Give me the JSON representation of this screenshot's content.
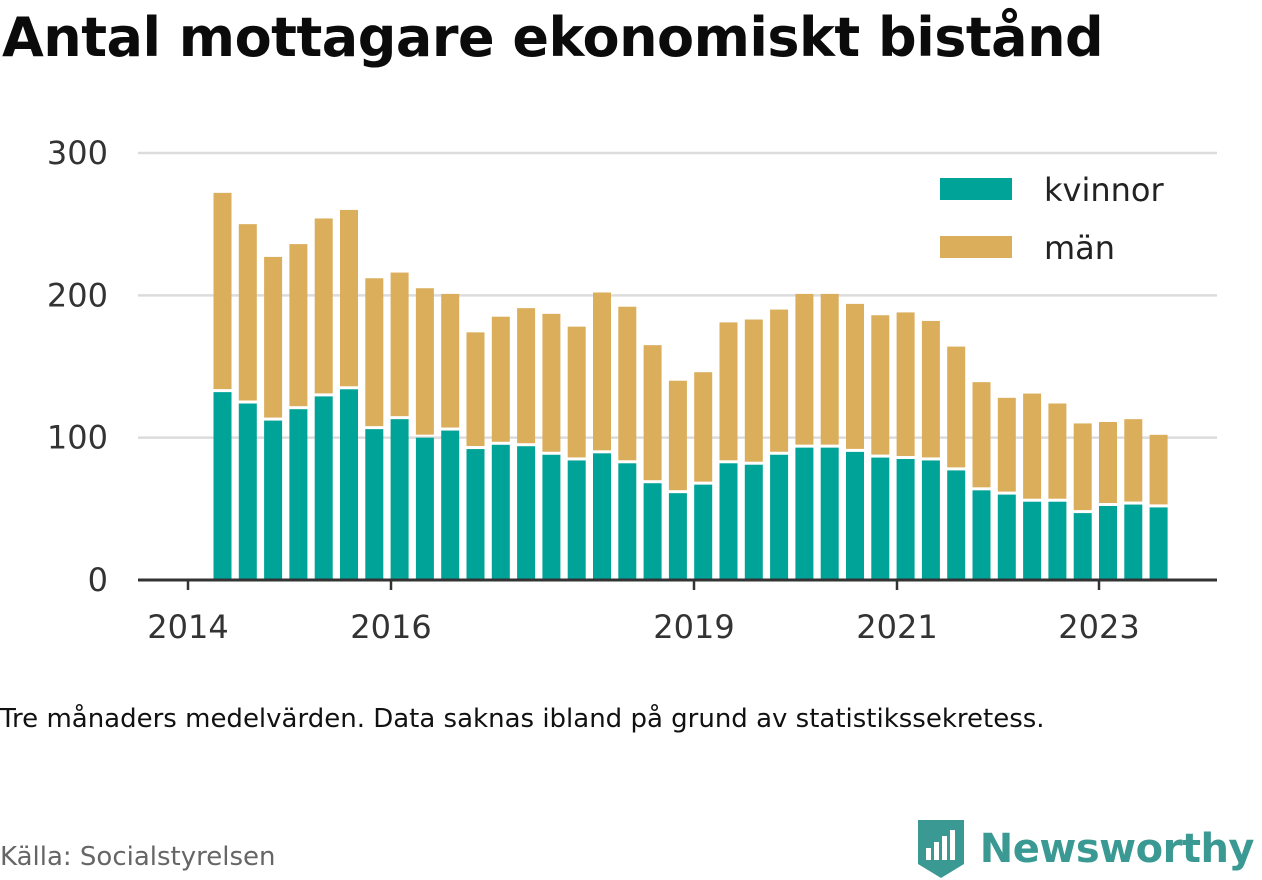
{
  "title": "Antal mottagare ekonomiskt bistånd",
  "note": "Tre månaders medelvärden. Data saknas ibland på grund av statistikssekretess.",
  "source": "Källa: Socialstyrelsen",
  "brand": {
    "name": "Newsworthy",
    "icon": "newsworthy-logo-icon",
    "color": "#3a9a93"
  },
  "chart_data": {
    "type": "bar",
    "stacked": true,
    "title": "Antal mottagare ekonomiskt bistånd",
    "ylim": [
      0,
      300
    ],
    "y_ticks": [
      0,
      100,
      200,
      300
    ],
    "x_ticks": [
      "2014",
      "2016",
      "2019",
      "2021",
      "2023"
    ],
    "grid": true,
    "legend_position": "top-right",
    "series": [
      {
        "name": "kvinnor",
        "color": "#00a397",
        "values": [
          132,
          124,
          112,
          120,
          129,
          134,
          106,
          113,
          100,
          105,
          92,
          95,
          94,
          88,
          84,
          89,
          82,
          68,
          61,
          67,
          82,
          81,
          88,
          93,
          93,
          90,
          86,
          85,
          84,
          77,
          63,
          60,
          55,
          55,
          47,
          52,
          53,
          51
        ]
      },
      {
        "name": "män",
        "color": "#dbae5c",
        "values": [
          140,
          126,
          115,
          116,
          125,
          126,
          106,
          103,
          105,
          96,
          82,
          90,
          97,
          99,
          94,
          113,
          110,
          97,
          79,
          79,
          99,
          102,
          102,
          108,
          108,
          104,
          100,
          103,
          98,
          87,
          76,
          68,
          76,
          69,
          63,
          59,
          60,
          51
        ]
      }
    ],
    "totals": [
      272,
      250,
      227,
      236,
      254,
      260,
      212,
      216,
      205,
      201,
      174,
      185,
      191,
      187,
      178,
      202,
      192,
      165,
      140,
      146,
      181,
      183,
      190,
      201,
      201,
      194,
      186,
      188,
      182,
      164,
      139,
      128,
      131,
      124,
      110,
      111,
      113,
      102
    ]
  }
}
